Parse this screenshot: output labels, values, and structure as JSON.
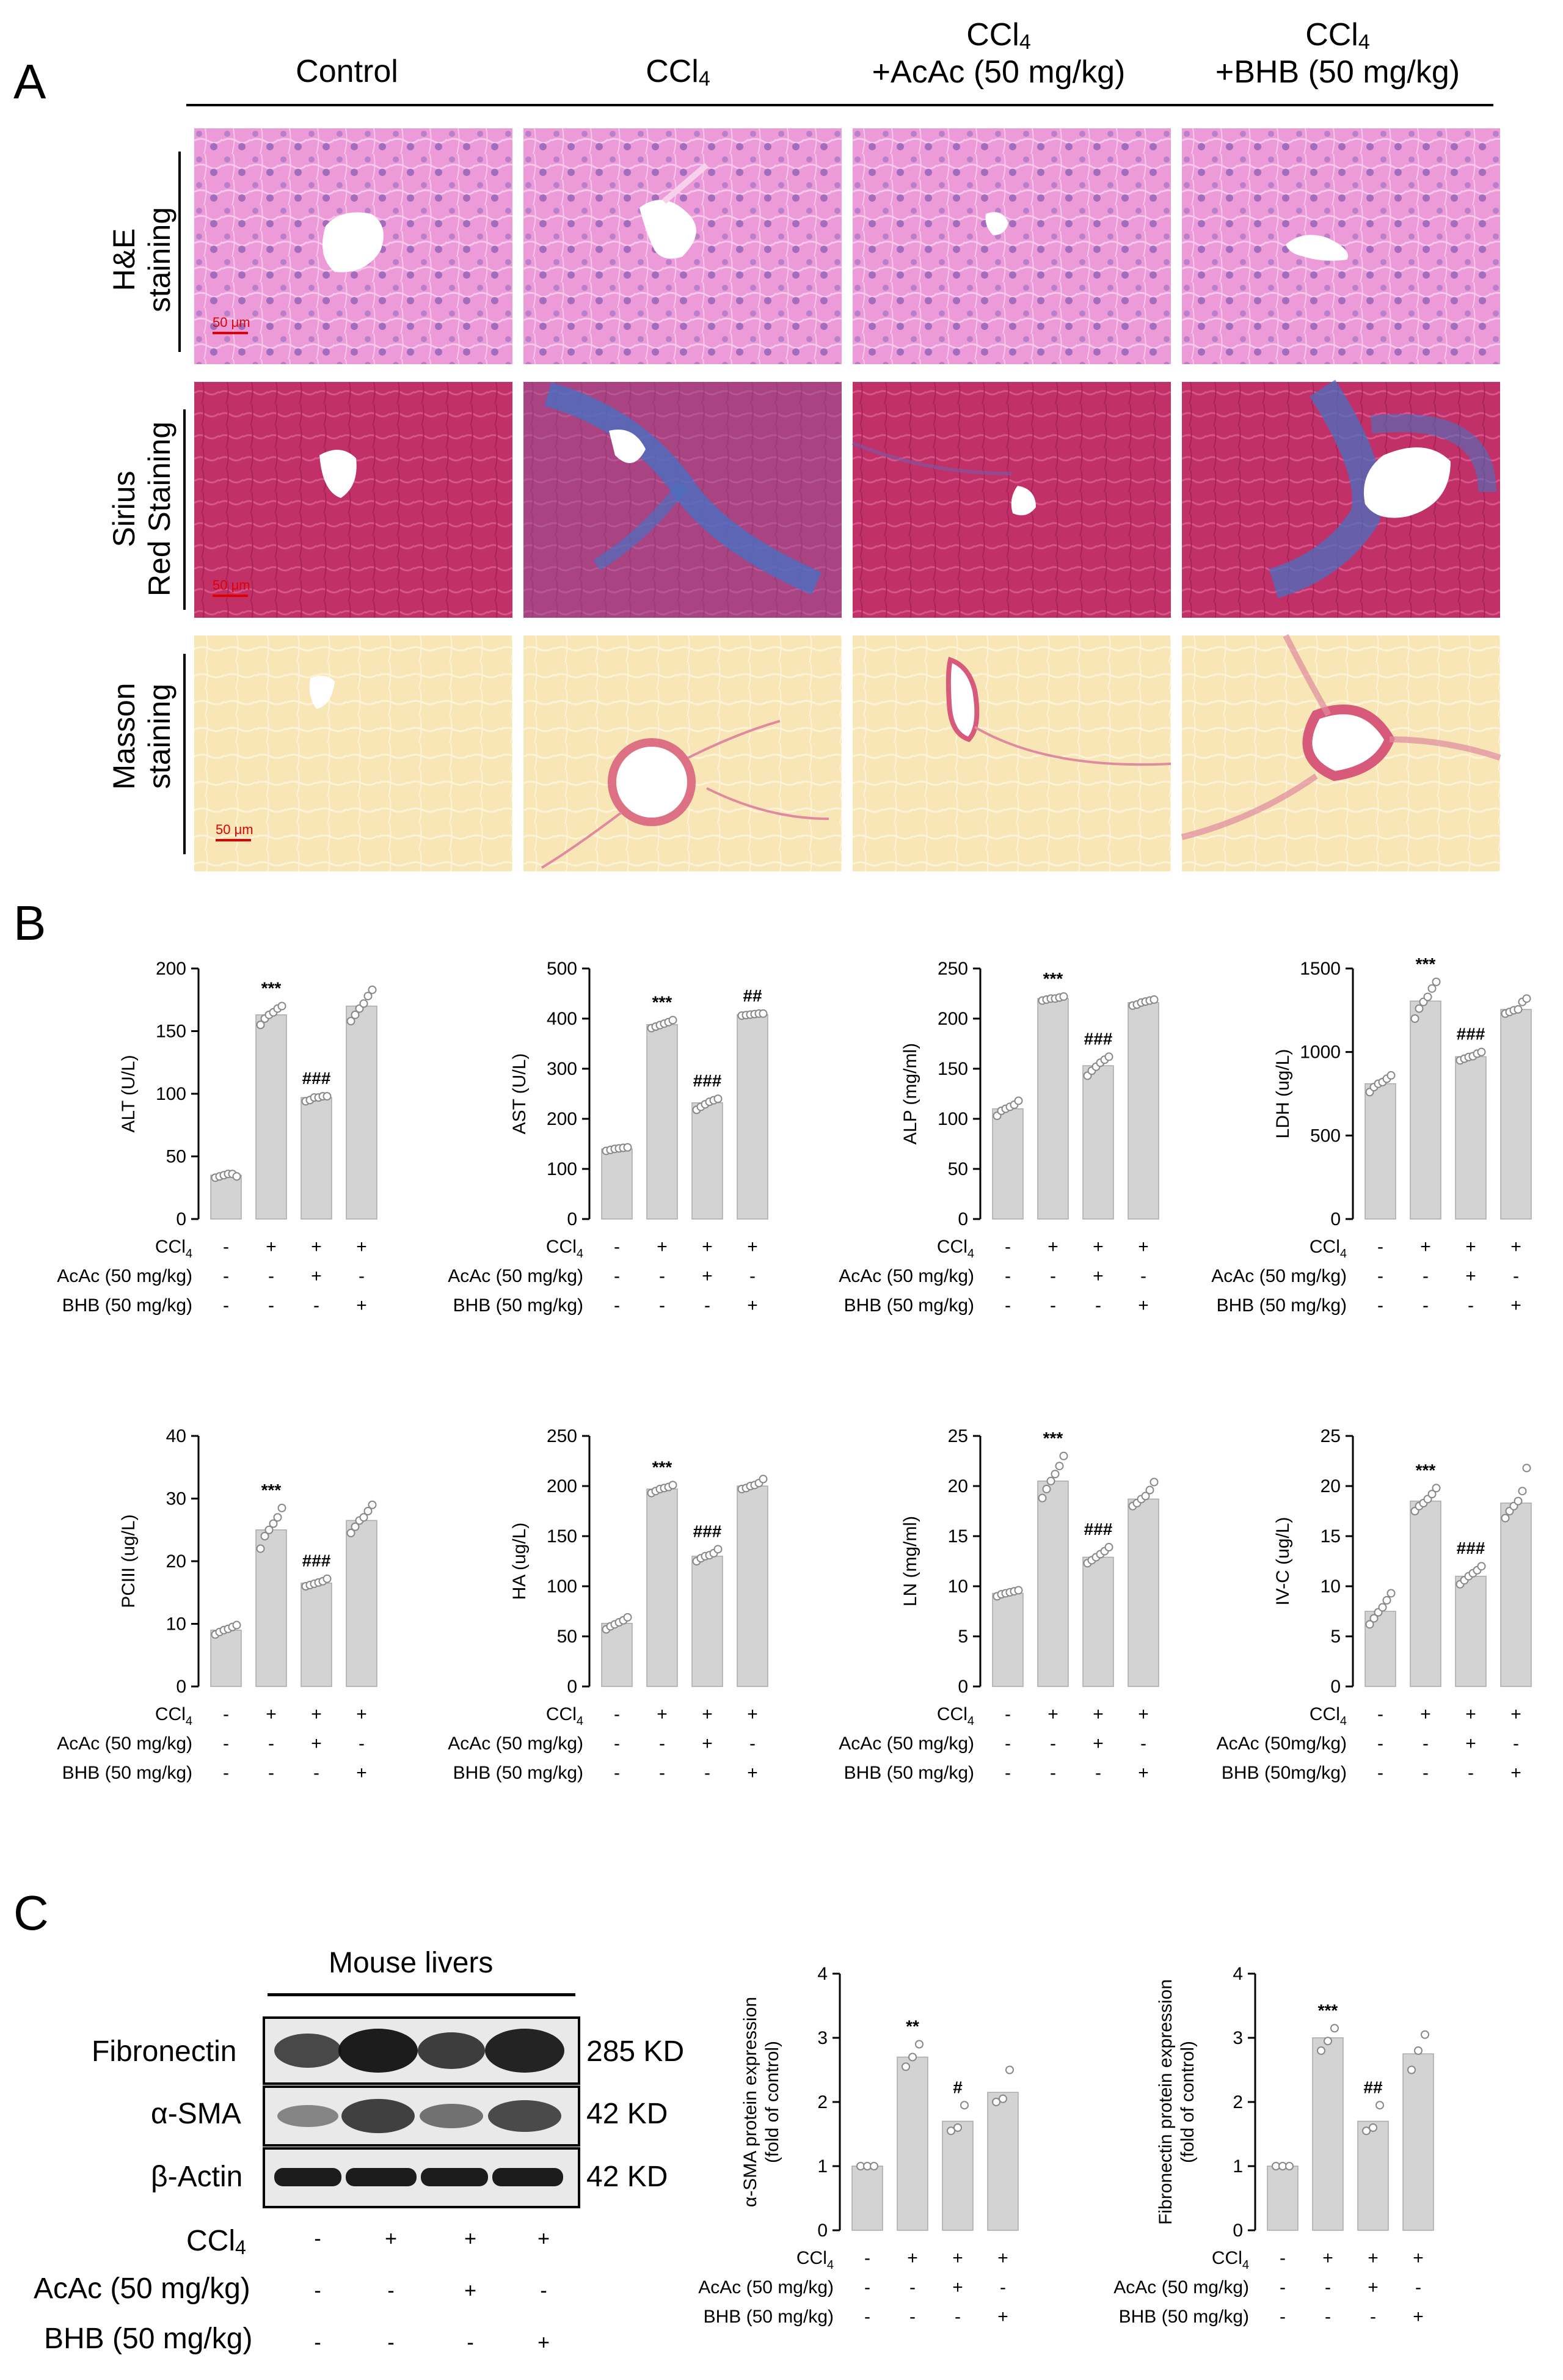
{
  "panels": {
    "a": "A",
    "b": "B",
    "c": "C"
  },
  "histology": {
    "columns": [
      {
        "main": "Control",
        "sub": "",
        "tail": "",
        "line2": ""
      },
      {
        "main": "CCl",
        "sub": "4",
        "tail": "",
        "line2": ""
      },
      {
        "main": "CCl",
        "sub": "4",
        "tail": "",
        "line2": "+AcAc (50 mg/kg)"
      },
      {
        "main": "CCl",
        "sub": "4",
        "tail": "",
        "line2": "+BHB (50 mg/kg)"
      }
    ],
    "rows": [
      {
        "line1": "H&E",
        "line2": "staining"
      },
      {
        "line1": "Sirius",
        "line2": "Red Staining"
      },
      {
        "line1": "Masson",
        "line2": "staining"
      }
    ],
    "scale_bar": "50 μm",
    "colors": {
      "he": "#e88fd3",
      "sirius": "#c2306b",
      "sirius_fibrosis": "#4a6fc0",
      "masson": "#f8e7b8",
      "masson_fibrosis": "#d85a7a"
    }
  },
  "treatment_rows": {
    "ccl4": {
      "text": "CCl",
      "sub": "4",
      "signs": [
        "-",
        "+",
        "+",
        "+"
      ]
    },
    "acac": {
      "text": "AcAc (50 mg/kg)",
      "signs": [
        "-",
        "-",
        "+",
        "-"
      ]
    },
    "bhb": {
      "text": "BHB (50 mg/kg)",
      "signs": [
        "-",
        "-",
        "-",
        "+"
      ]
    },
    "acac_ivc": {
      "text": "AcAc (50mg/kg)",
      "signs": [
        "-",
        "-",
        "+",
        "-"
      ]
    },
    "bhb_ivc": {
      "text": "BHB (50mg/kg)",
      "signs": [
        "-",
        "-",
        "-",
        "+"
      ]
    }
  },
  "chart_data": [
    {
      "type": "bar",
      "ylabel": "ALT (U/L)",
      "ylim": [
        0,
        200
      ],
      "yticks": [
        0,
        50,
        100,
        150,
        200
      ],
      "values": [
        35,
        163,
        97,
        170
      ],
      "points": [
        [
          33,
          34,
          35,
          36,
          36,
          34
        ],
        [
          155,
          160,
          163,
          165,
          168,
          170
        ],
        [
          94,
          95,
          97,
          97,
          98,
          98
        ],
        [
          158,
          163,
          168,
          172,
          178,
          183
        ]
      ],
      "annotations": [
        "",
        "***",
        "###",
        ""
      ],
      "treatments": [
        "ccl4",
        "acac",
        "bhb"
      ]
    },
    {
      "type": "bar",
      "ylabel": "AST (U/L)",
      "ylim": [
        0,
        500
      ],
      "yticks": [
        0,
        100,
        200,
        300,
        400,
        500
      ],
      "values": [
        140,
        388,
        232,
        408
      ],
      "points": [
        [
          136,
          138,
          140,
          141,
          142,
          143
        ],
        [
          381,
          384,
          387,
          390,
          393,
          397
        ],
        [
          218,
          224,
          229,
          234,
          237,
          240
        ],
        [
          406,
          407,
          408,
          409,
          410,
          410
        ]
      ],
      "annotations": [
        "",
        "***",
        "###",
        "##"
      ],
      "treatments": [
        "ccl4",
        "acac",
        "bhb"
      ]
    },
    {
      "type": "bar",
      "ylabel": "ALP (mg/ml)",
      "ylim": [
        0,
        250
      ],
      "yticks": [
        0,
        50,
        100,
        150,
        200,
        250
      ],
      "values": [
        110,
        220,
        153,
        216
      ],
      "points": [
        [
          103,
          108,
          110,
          112,
          114,
          118
        ],
        [
          218,
          219,
          220,
          220,
          221,
          222
        ],
        [
          143,
          148,
          152,
          156,
          159,
          162
        ],
        [
          213,
          214,
          216,
          217,
          218,
          219
        ]
      ],
      "annotations": [
        "",
        "***",
        "###",
        ""
      ],
      "treatments": [
        "ccl4",
        "acac",
        "bhb"
      ]
    },
    {
      "type": "bar",
      "ylabel": "LDH (ug/L)",
      "ylim": [
        0,
        1500
      ],
      "yticks": [
        0,
        500,
        1000,
        1500
      ],
      "values": [
        810,
        1305,
        972,
        1255
      ],
      "points": [
        [
          760,
          790,
          810,
          820,
          840,
          860
        ],
        [
          1200,
          1260,
          1300,
          1330,
          1380,
          1420
        ],
        [
          950,
          960,
          970,
          975,
          990,
          1000
        ],
        [
          1230,
          1240,
          1250,
          1255,
          1300,
          1320
        ]
      ],
      "annotations": [
        "",
        "***",
        "###",
        ""
      ],
      "treatments": [
        "ccl4",
        "acac",
        "bhb"
      ]
    },
    {
      "type": "bar",
      "ylabel": "PCIII (ug/L)",
      "ylim": [
        0,
        40
      ],
      "yticks": [
        0,
        10,
        20,
        30,
        40
      ],
      "values": [
        9,
        25,
        16.5,
        26.5
      ],
      "points": [
        [
          8.3,
          8.7,
          9.0,
          9.2,
          9.5,
          9.8
        ],
        [
          22,
          24,
          25,
          26,
          27,
          28.5
        ],
        [
          16.0,
          16.2,
          16.4,
          16.6,
          16.8,
          17.2
        ],
        [
          24.5,
          25.5,
          26.5,
          27,
          28,
          29
        ]
      ],
      "annotations": [
        "",
        "***",
        "###",
        ""
      ],
      "treatments": [
        "ccl4",
        "acac",
        "bhb"
      ]
    },
    {
      "type": "bar",
      "ylabel": "HA (ug/L)",
      "ylim": [
        0,
        250
      ],
      "yticks": [
        0,
        50,
        100,
        150,
        200,
        250
      ],
      "values": [
        63,
        197,
        130,
        200
      ],
      "points": [
        [
          57,
          60,
          62,
          64,
          66,
          69
        ],
        [
          193,
          195,
          197,
          198,
          199,
          201
        ],
        [
          125,
          128,
          130,
          131,
          133,
          137
        ],
        [
          197,
          198,
          200,
          201,
          203,
          207
        ]
      ],
      "annotations": [
        "",
        "***",
        "###",
        ""
      ],
      "treatments": [
        "ccl4",
        "acac",
        "bhb"
      ]
    },
    {
      "type": "bar",
      "ylabel": "LN (mg/ml)",
      "ylim": [
        0,
        25
      ],
      "yticks": [
        0,
        5,
        10,
        15,
        20,
        25
      ],
      "values": [
        9.3,
        20.5,
        12.9,
        18.7
      ],
      "points": [
        [
          9.0,
          9.2,
          9.3,
          9.4,
          9.5,
          9.6
        ],
        [
          18.8,
          19.7,
          20.5,
          21.2,
          22.0,
          23.0
        ],
        [
          12.3,
          12.6,
          12.9,
          13.2,
          13.5,
          13.9
        ],
        [
          18.0,
          18.3,
          18.7,
          19.0,
          19.6,
          20.4
        ]
      ],
      "annotations": [
        "",
        "***",
        "###",
        ""
      ],
      "treatments": [
        "ccl4",
        "acac",
        "bhb"
      ]
    },
    {
      "type": "bar",
      "ylabel": "IV-C (ug/L)",
      "ylim": [
        0,
        25
      ],
      "yticks": [
        0,
        5,
        10,
        15,
        20,
        25
      ],
      "values": [
        7.5,
        18.5,
        11,
        18.3
      ],
      "points": [
        [
          6.2,
          6.8,
          7.4,
          7.9,
          8.6,
          9.3
        ],
        [
          17.5,
          18.0,
          18.3,
          18.7,
          19.2,
          19.8
        ],
        [
          10.2,
          10.6,
          11.0,
          11.3,
          11.6,
          12.0
        ],
        [
          16.8,
          17.5,
          18.0,
          18.5,
          19.5,
          21.8
        ]
      ],
      "annotations": [
        "",
        "***",
        "###",
        ""
      ],
      "treatments": [
        "ccl4",
        "acac_ivc",
        "bhb_ivc"
      ]
    },
    {
      "type": "bar",
      "ylabel": "α-SMA protein expression\n(fold of control)",
      "ylim": [
        0,
        4
      ],
      "yticks": [
        0,
        1,
        2,
        3,
        4
      ],
      "values": [
        1,
        2.7,
        1.7,
        2.15
      ],
      "points": [
        [
          1,
          1,
          1
        ],
        [
          2.55,
          2.7,
          2.9
        ],
        [
          1.55,
          1.6,
          1.95
        ],
        [
          2.0,
          2.05,
          2.5
        ]
      ],
      "annotations": [
        "",
        "**",
        "#",
        ""
      ],
      "treatments": [
        "ccl4",
        "acac",
        "bhb"
      ]
    },
    {
      "type": "bar",
      "ylabel": "Fibronectin protein expression\n(fold of control)",
      "ylim": [
        0,
        4
      ],
      "yticks": [
        0,
        1,
        2,
        3,
        4
      ],
      "values": [
        1,
        3,
        1.7,
        2.75
      ],
      "points": [
        [
          1,
          1,
          1
        ],
        [
          2.8,
          2.95,
          3.15
        ],
        [
          1.55,
          1.6,
          1.95
        ],
        [
          2.5,
          2.8,
          3.05
        ]
      ],
      "annotations": [
        "",
        "***",
        "##",
        ""
      ],
      "treatments": [
        "ccl4",
        "acac",
        "bhb"
      ]
    }
  ],
  "western_blot": {
    "title": "Mouse livers",
    "bands": [
      {
        "name": "Fibronectin",
        "size": "285 KD"
      },
      {
        "name": "α-SMA",
        "size": "42 KD"
      },
      {
        "name": "β-Actin",
        "size": "42 KD"
      }
    ]
  }
}
